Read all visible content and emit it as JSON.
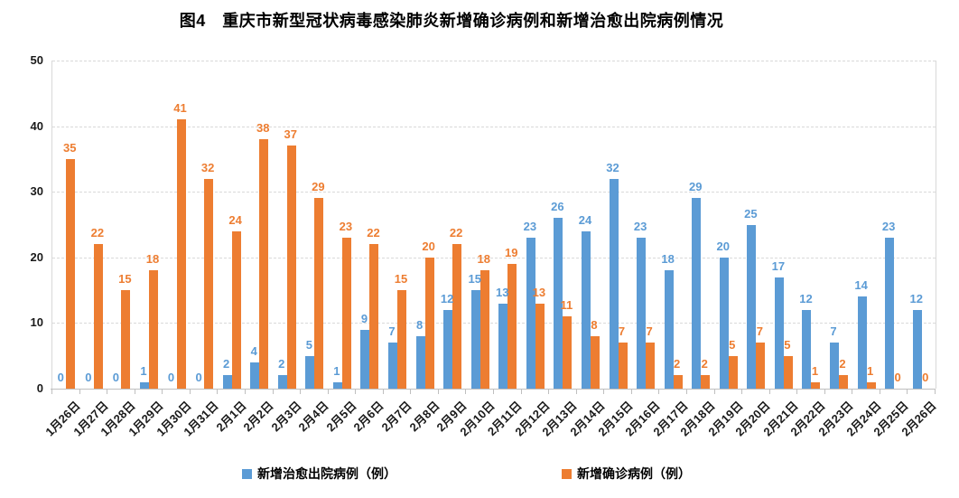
{
  "chart_data": {
    "type": "bar",
    "title": "图4　重庆市新型冠状病毒感染肺炎新增确诊病例和新增治愈出院病例情况",
    "categories": [
      "1月26日",
      "1月27日",
      "1月28日",
      "1月29日",
      "1月30日",
      "1月31日",
      "2月1日",
      "2月2日",
      "2月3日",
      "2月4日",
      "2月5日",
      "2月6日",
      "2月7日",
      "2月8日",
      "2月9日",
      "2月10日",
      "2月11日",
      "2月12日",
      "2月13日",
      "2月14日",
      "2月15日",
      "2月16日",
      "2月17日",
      "2月18日",
      "2月19日",
      "2月20日",
      "2月21日",
      "2月22日",
      "2月23日",
      "2月24日",
      "2月25日",
      "2月26日"
    ],
    "series": [
      {
        "name": "新增治愈出院病例（例）",
        "color": "#5B9BD5",
        "values": [
          0,
          0,
          0,
          1,
          0,
          0,
          2,
          4,
          2,
          5,
          1,
          9,
          7,
          8,
          12,
          15,
          13,
          23,
          26,
          24,
          32,
          23,
          18,
          29,
          20,
          25,
          17,
          12,
          7,
          14,
          23,
          12
        ]
      },
      {
        "name": "新增确诊病例（例）",
        "color": "#ED7D31",
        "values": [
          35,
          22,
          15,
          18,
          41,
          32,
          24,
          38,
          37,
          29,
          23,
          22,
          15,
          20,
          22,
          18,
          19,
          13,
          11,
          8,
          7,
          7,
          2,
          2,
          5,
          7,
          5,
          1,
          2,
          1,
          0,
          0
        ]
      }
    ],
    "xlabel": "",
    "ylabel": "",
    "ylim": [
      0,
      50
    ],
    "yticks": [
      0,
      10,
      20,
      30,
      40,
      50
    ],
    "grid": "horizontal-dashed",
    "legend_position": "bottom",
    "data_labels": true
  }
}
